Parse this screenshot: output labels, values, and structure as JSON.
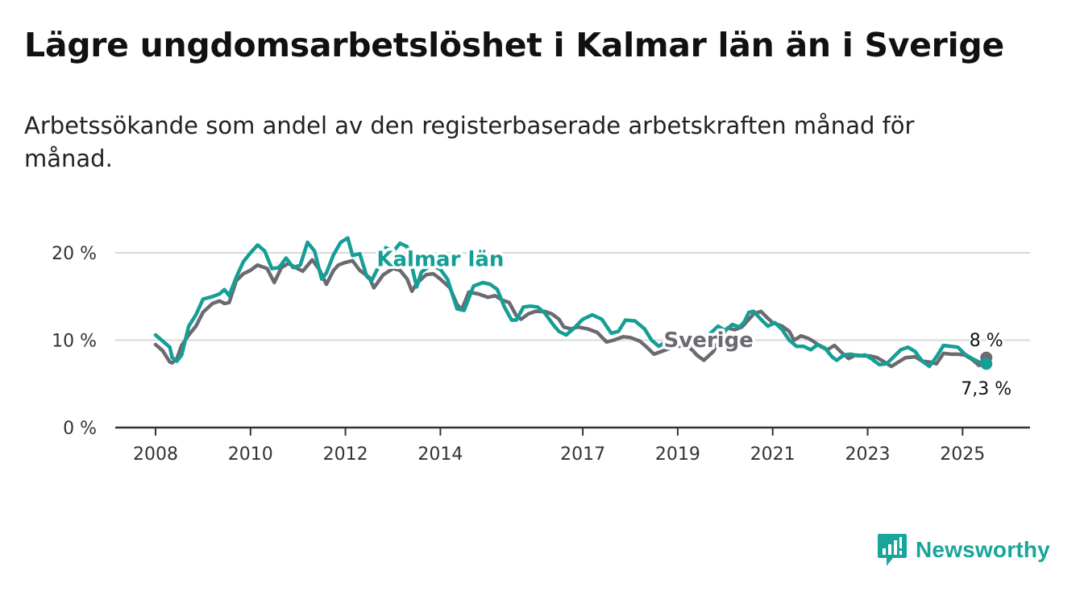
{
  "title": "Lägre ungdomsarbetslöshet i Kalmar län än i Sverige",
  "subtitle": "Arbetssökande som andel av den registerbaserade arbetskraften månad för månad.",
  "logo": {
    "text": "Newsworthy",
    "icon": "bar-chart-badge-icon",
    "color": "#1aa59b"
  },
  "chart_data": {
    "type": "line",
    "xlabel": "",
    "ylabel": "",
    "xlim": [
      2008.0,
      2026.45
    ],
    "ylim": [
      0,
      22
    ],
    "grid": true,
    "y_ticks": [
      {
        "value": 0,
        "label": "0 %"
      },
      {
        "value": 10,
        "label": "10 %"
      },
      {
        "value": 20,
        "label": "20 %"
      }
    ],
    "x_ticks": [
      {
        "value": 2008,
        "label": "2008"
      },
      {
        "value": 2010,
        "label": "2010"
      },
      {
        "value": 2012,
        "label": "2012"
      },
      {
        "value": 2014,
        "label": "2014"
      },
      {
        "value": 2017,
        "label": "2017"
      },
      {
        "value": 2019,
        "label": "2019"
      },
      {
        "value": 2021,
        "label": "2021"
      },
      {
        "value": 2023,
        "label": "2023"
      },
      {
        "value": 2025,
        "label": "2025"
      }
    ],
    "series": [
      {
        "name": "Sverige",
        "color": "#6b6a70",
        "end_value_label": "8 %",
        "x": [
          2008.0,
          2008.15,
          2008.3,
          2008.35,
          2008.45,
          2008.55,
          2008.7,
          2008.85,
          2009.0,
          2009.2,
          2009.35,
          2009.45,
          2009.55,
          2009.7,
          2009.85,
          2010.0,
          2010.15,
          2010.35,
          2010.5,
          2010.65,
          2010.8,
          2010.95,
          2011.1,
          2011.3,
          2011.45,
          2011.6,
          2011.75,
          2011.85,
          2012.0,
          2012.15,
          2012.3,
          2012.5,
          2012.6,
          2012.8,
          2013.0,
          2013.15,
          2013.3,
          2013.4,
          2013.5,
          2013.7,
          2013.85,
          2014.0,
          2014.2,
          2014.35,
          2014.45,
          2014.6,
          2014.8,
          2015.0,
          2015.15,
          2015.3,
          2015.45,
          2015.6,
          2015.7,
          2015.85,
          2016.0,
          2016.2,
          2016.35,
          2016.5,
          2016.6,
          2016.75,
          2016.9,
          2017.1,
          2017.3,
          2017.5,
          2017.65,
          2017.85,
          2018.0,
          2018.2,
          2018.35,
          2018.5,
          2018.65,
          2018.8,
          2019.0,
          2019.15,
          2019.3,
          2019.4,
          2019.55,
          2019.75,
          2019.9,
          2020.05,
          2020.2,
          2020.35,
          2020.5,
          2020.6,
          2020.75,
          2020.9,
          2021.0,
          2021.2,
          2021.35,
          2021.45,
          2021.6,
          2021.75,
          2021.85,
          2022.0,
          2022.15,
          2022.3,
          2022.45,
          2022.6,
          2022.75,
          2022.9,
          2023.05,
          2023.2,
          2023.35,
          2023.5,
          2023.65,
          2023.8,
          2024.0,
          2024.15,
          2024.3,
          2024.45,
          2024.6,
          2024.75,
          2024.9,
          2025.05,
          2025.2,
          2025.35,
          2025.5
        ],
        "y": [
          9.5,
          8.8,
          7.5,
          7.4,
          7.9,
          9.4,
          10.6,
          11.6,
          13.2,
          14.2,
          14.5,
          14.2,
          14.3,
          16.8,
          17.6,
          18.0,
          18.6,
          18.2,
          16.6,
          18.3,
          18.8,
          18.3,
          17.9,
          19.2,
          18.1,
          16.4,
          18.0,
          18.6,
          18.9,
          19.1,
          18.0,
          17.2,
          16.0,
          17.5,
          18.2,
          18.0,
          17.0,
          15.6,
          16.5,
          17.5,
          17.6,
          17.0,
          16.0,
          14.1,
          13.5,
          15.5,
          15.3,
          14.9,
          15.1,
          14.6,
          14.3,
          12.8,
          12.4,
          13.0,
          13.3,
          13.3,
          13.0,
          12.4,
          11.5,
          11.3,
          11.5,
          11.3,
          10.9,
          9.8,
          10.0,
          10.4,
          10.3,
          9.9,
          9.2,
          8.4,
          8.7,
          9.0,
          9.3,
          9.4,
          8.9,
          8.3,
          7.7,
          8.7,
          10.3,
          11.4,
          11.2,
          11.5,
          12.4,
          13.0,
          13.3,
          12.5,
          12.0,
          11.6,
          11.0,
          10.0,
          10.5,
          10.2,
          9.9,
          9.3,
          8.9,
          9.4,
          8.6,
          7.9,
          8.3,
          8.2,
          8.2,
          8.0,
          7.5,
          7.0,
          7.5,
          8.0,
          8.1,
          7.6,
          7.5,
          7.3,
          8.5,
          8.4,
          8.4,
          8.3,
          7.8,
          7.1,
          8.0
        ]
      },
      {
        "name": "Kalmar län",
        "color": "#159e95",
        "end_value_label": "7,3 %",
        "x": [
          2008.0,
          2008.15,
          2008.3,
          2008.35,
          2008.45,
          2008.55,
          2008.7,
          2008.85,
          2009.0,
          2009.2,
          2009.35,
          2009.45,
          2009.55,
          2009.7,
          2009.85,
          2010.0,
          2010.15,
          2010.3,
          2010.45,
          2010.6,
          2010.75,
          2010.9,
          2011.05,
          2011.2,
          2011.35,
          2011.5,
          2011.6,
          2011.75,
          2011.9,
          2012.05,
          2012.15,
          2012.3,
          2012.45,
          2012.55,
          2012.75,
          2012.85,
          2013.0,
          2013.15,
          2013.3,
          2013.4,
          2013.5,
          2013.6,
          2013.8,
          2014.0,
          2014.15,
          2014.35,
          2014.5,
          2014.7,
          2014.9,
          2015.05,
          2015.2,
          2015.35,
          2015.5,
          2015.6,
          2015.75,
          2015.9,
          2016.05,
          2016.2,
          2016.4,
          2016.5,
          2016.65,
          2016.8,
          2017.0,
          2017.2,
          2017.4,
          2017.6,
          2017.75,
          2017.9,
          2018.1,
          2018.3,
          2018.45,
          2018.6,
          2018.75,
          2018.9,
          2019.05,
          2019.2,
          2019.35,
          2019.5,
          2019.65,
          2019.85,
          2020.0,
          2020.15,
          2020.3,
          2020.4,
          2020.5,
          2020.6,
          2020.75,
          2020.9,
          2021.05,
          2021.2,
          2021.35,
          2021.5,
          2021.65,
          2021.8,
          2021.95,
          2022.1,
          2022.25,
          2022.35,
          2022.5,
          2022.65,
          2022.8,
          2022.95,
          2023.1,
          2023.25,
          2023.4,
          2023.55,
          2023.7,
          2023.85,
          2024.0,
          2024.15,
          2024.3,
          2024.45,
          2024.6,
          2024.75,
          2024.9,
          2025.05,
          2025.2,
          2025.35,
          2025.5
        ],
        "y": [
          10.6,
          9.9,
          9.2,
          8.0,
          7.6,
          8.3,
          11.6,
          12.9,
          14.7,
          15.0,
          15.3,
          15.8,
          15.1,
          17.2,
          19.0,
          20.0,
          20.9,
          20.2,
          18.2,
          18.3,
          19.4,
          18.3,
          18.6,
          21.2,
          20.2,
          17.0,
          17.7,
          19.8,
          21.2,
          21.7,
          19.7,
          19.9,
          17.3,
          16.8,
          19.0,
          20.6,
          20.1,
          21.1,
          20.7,
          18.4,
          16.1,
          17.8,
          18.6,
          18.1,
          17.0,
          13.6,
          13.4,
          16.2,
          16.6,
          16.4,
          15.8,
          13.8,
          12.3,
          12.3,
          13.8,
          13.9,
          13.8,
          13.1,
          11.6,
          11.0,
          10.6,
          11.3,
          12.4,
          12.9,
          12.4,
          10.8,
          11.0,
          12.3,
          12.2,
          11.3,
          10.0,
          9.3,
          9.8,
          10.3,
          10.4,
          9.9,
          9.3,
          10.2,
          10.6,
          11.6,
          11.1,
          11.8,
          11.5,
          12.1,
          13.2,
          13.3,
          12.4,
          11.6,
          12.0,
          11.2,
          10.0,
          9.3,
          9.3,
          8.9,
          9.5,
          9.1,
          8.1,
          7.7,
          8.3,
          8.4,
          8.2,
          8.3,
          7.8,
          7.2,
          7.3,
          8.1,
          8.9,
          9.2,
          8.7,
          7.6,
          7.0,
          8.1,
          9.4,
          9.3,
          9.2,
          8.4,
          7.9,
          7.5,
          7.3
        ]
      }
    ],
    "series_labels": [
      {
        "series": "Kalmar län",
        "text": "Kalmar län",
        "x": 2014.0,
        "y": 18.5
      },
      {
        "series": "Sverige",
        "text": "Sverige",
        "x": 2019.65,
        "y": 9.2
      }
    ]
  }
}
